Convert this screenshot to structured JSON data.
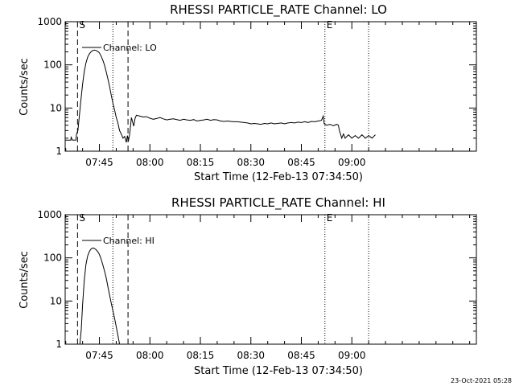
{
  "footer": {
    "timestamp": "23-Oct-2021 05:28"
  },
  "chart_data": [
    {
      "type": "line",
      "title": "RHESSI PARTICLE_RATE Channel: LO",
      "xlabel": "Start Time (12-Feb-13 07:34:50)",
      "ylabel": "Counts/sec",
      "yscale": "log",
      "ylim": [
        1,
        1000
      ],
      "xlim_minutes_of_day": [
        454.83,
        577
      ],
      "xticks": [
        {
          "t": 465,
          "label": "07:45"
        },
        {
          "t": 480,
          "label": "08:00"
        },
        {
          "t": 495,
          "label": "08:15"
        },
        {
          "t": 510,
          "label": "08:30"
        },
        {
          "t": 525,
          "label": "08:45"
        },
        {
          "t": 540,
          "label": "09:00"
        }
      ],
      "yticks": [
        {
          "v": 1,
          "label": "1"
        },
        {
          "v": 10,
          "label": "10"
        },
        {
          "v": 100,
          "label": "100"
        },
        {
          "v": 1000,
          "label": "1000"
        }
      ],
      "legend": {
        "label": "Channel: LO",
        "position": "top-left"
      },
      "event_markers": [
        {
          "time": "07:38:30",
          "t": 458.5,
          "style": "dashed",
          "label": "S"
        },
        {
          "time": "07:53:30",
          "t": 473.5,
          "style": "dashed",
          "label": ""
        },
        {
          "time": "07:49:00",
          "t": 469.0,
          "style": "dotted",
          "label": ""
        },
        {
          "time": "09:05:00",
          "t": 545.0,
          "style": "dotted",
          "label": ""
        },
        {
          "time": "08:52:00",
          "t": 532.0,
          "style": "dotted",
          "label": "E"
        }
      ],
      "series": [
        {
          "name": "Channel: LO",
          "points": [
            [
              454.9,
              1.8
            ],
            [
              456.5,
              1.8
            ],
            [
              456.6,
              2.1
            ],
            [
              457.0,
              1.8
            ],
            [
              457.5,
              1.8
            ],
            [
              458.0,
              1.8
            ],
            [
              458.2,
              2.5
            ],
            [
              458.6,
              3
            ],
            [
              459.0,
              6
            ],
            [
              459.5,
              15
            ],
            [
              460.0,
              35
            ],
            [
              460.5,
              70
            ],
            [
              461.0,
              110
            ],
            [
              461.5,
              150
            ],
            [
              462.0,
              180
            ],
            [
              462.5,
              200
            ],
            [
              463.0,
              215
            ],
            [
              463.5,
              220
            ],
            [
              464.0,
              215
            ],
            [
              464.5,
              205
            ],
            [
              465.0,
              190
            ],
            [
              465.5,
              160
            ],
            [
              466.0,
              130
            ],
            [
              466.5,
              100
            ],
            [
              467.0,
              70
            ],
            [
              467.5,
              48
            ],
            [
              468.0,
              32
            ],
            [
              468.5,
              20
            ],
            [
              469.0,
              13
            ],
            [
              469.5,
              9
            ],
            [
              470.0,
              6
            ],
            [
              470.5,
              4.5
            ],
            [
              471.0,
              3
            ],
            [
              471.5,
              2.5
            ],
            [
              472.0,
              2
            ],
            [
              472.5,
              2.2
            ],
            [
              473.0,
              1.6
            ],
            [
              473.3,
              2.3
            ],
            [
              473.6,
              1.7
            ],
            [
              474.0,
              2.5
            ],
            [
              474.2,
              3.5
            ],
            [
              474.5,
              6
            ],
            [
              474.8,
              5
            ],
            [
              475.2,
              3.8
            ],
            [
              475.6,
              5.8
            ],
            [
              476.0,
              6.8
            ],
            [
              477.0,
              6.5
            ],
            [
              478.0,
              6.2
            ],
            [
              479.0,
              6.3
            ],
            [
              480.0,
              5.8
            ],
            [
              481.0,
              5.5
            ],
            [
              482.0,
              5.7
            ],
            [
              483.0,
              6
            ],
            [
              484.0,
              5.6
            ],
            [
              485.0,
              5.3
            ],
            [
              486.0,
              5.5
            ],
            [
              487.0,
              5.6
            ],
            [
              488.0,
              5.4
            ],
            [
              489.0,
              5.2
            ],
            [
              490.0,
              5.5
            ],
            [
              491.0,
              5.3
            ],
            [
              492.0,
              5.2
            ],
            [
              493.0,
              5.4
            ],
            [
              494.0,
              5.0
            ],
            [
              495.0,
              5.2
            ],
            [
              496.0,
              5.3
            ],
            [
              497.0,
              5.5
            ],
            [
              498.0,
              5.2
            ],
            [
              499.0,
              5.4
            ],
            [
              500.0,
              5.3
            ],
            [
              501.0,
              5.0
            ],
            [
              502.0,
              4.9
            ],
            [
              503.0,
              5.0
            ],
            [
              504.0,
              4.9
            ],
            [
              505.0,
              4.8
            ],
            [
              506.0,
              4.8
            ],
            [
              507.0,
              4.7
            ],
            [
              508.0,
              4.6
            ],
            [
              509.0,
              4.5
            ],
            [
              510.0,
              4.3
            ],
            [
              511.0,
              4.4
            ],
            [
              512.0,
              4.3
            ],
            [
              513.0,
              4.2
            ],
            [
              514.0,
              4.4
            ],
            [
              515.0,
              4.3
            ],
            [
              516.0,
              4.5
            ],
            [
              517.0,
              4.3
            ],
            [
              518.0,
              4.4
            ],
            [
              519.0,
              4.5
            ],
            [
              520.0,
              4.3
            ],
            [
              521.0,
              4.5
            ],
            [
              522.0,
              4.6
            ],
            [
              523.0,
              4.5
            ],
            [
              524.0,
              4.7
            ],
            [
              525.0,
              4.6
            ],
            [
              526.0,
              4.8
            ],
            [
              527.0,
              4.6
            ],
            [
              528.0,
              4.9
            ],
            [
              529.0,
              4.8
            ],
            [
              530.0,
              5.0
            ],
            [
              531.0,
              5.2
            ],
            [
              531.5,
              6.5
            ],
            [
              531.8,
              4.3
            ],
            [
              532.5,
              4.0
            ],
            [
              533.5,
              4.2
            ],
            [
              534.5,
              3.9
            ],
            [
              535.5,
              4.2
            ],
            [
              536.0,
              4.0
            ],
            [
              536.3,
              3.0
            ],
            [
              537.0,
              2.0
            ],
            [
              537.5,
              2.5
            ],
            [
              538.0,
              2.0
            ],
            [
              539.0,
              2.4
            ],
            [
              540.0,
              2.0
            ],
            [
              541.0,
              2.3
            ],
            [
              542.0,
              2.0
            ],
            [
              543.0,
              2.4
            ],
            [
              544.0,
              2.0
            ],
            [
              545.0,
              2.3
            ],
            [
              546.0,
              2.0
            ],
            [
              547.0,
              2.4
            ]
          ]
        }
      ]
    },
    {
      "type": "line",
      "title": "RHESSI PARTICLE_RATE Channel: HI",
      "xlabel": "Start Time (12-Feb-13 07:34:50)",
      "ylabel": "Counts/sec",
      "yscale": "log",
      "ylim": [
        1,
        1000
      ],
      "xlim_minutes_of_day": [
        454.83,
        577
      ],
      "xticks": [
        {
          "t": 465,
          "label": "07:45"
        },
        {
          "t": 480,
          "label": "08:00"
        },
        {
          "t": 495,
          "label": "08:15"
        },
        {
          "t": 510,
          "label": "08:30"
        },
        {
          "t": 525,
          "label": "08:45"
        },
        {
          "t": 540,
          "label": "09:00"
        }
      ],
      "yticks": [
        {
          "v": 1,
          "label": "1"
        },
        {
          "v": 10,
          "label": "10"
        },
        {
          "v": 100,
          "label": "100"
        },
        {
          "v": 1000,
          "label": "1000"
        }
      ],
      "legend": {
        "label": "Channel: HI",
        "position": "top-left"
      },
      "event_markers": [
        {
          "time": "07:38:30",
          "t": 458.5,
          "style": "dashed",
          "label": "S"
        },
        {
          "time": "07:53:30",
          "t": 473.5,
          "style": "dashed",
          "label": ""
        },
        {
          "time": "07:49:00",
          "t": 469.0,
          "style": "dotted",
          "label": ""
        },
        {
          "time": "09:05:00",
          "t": 545.0,
          "style": "dotted",
          "label": ""
        },
        {
          "time": "08:52:00",
          "t": 532.0,
          "style": "dotted",
          "label": "E"
        }
      ],
      "series": [
        {
          "name": "Channel: HI",
          "points": [
            [
              459.2,
              1.0
            ],
            [
              459.6,
              2.2
            ],
            [
              460.0,
              8
            ],
            [
              460.5,
              30
            ],
            [
              461.0,
              70
            ],
            [
              461.5,
              110
            ],
            [
              462.0,
              140
            ],
            [
              462.5,
              160
            ],
            [
              463.0,
              170
            ],
            [
              463.5,
              165
            ],
            [
              464.0,
              155
            ],
            [
              464.5,
              140
            ],
            [
              465.0,
              120
            ],
            [
              465.5,
              95
            ],
            [
              466.0,
              70
            ],
            [
              466.5,
              50
            ],
            [
              467.0,
              35
            ],
            [
              467.5,
              22
            ],
            [
              468.0,
              14
            ],
            [
              468.5,
              9
            ],
            [
              469.0,
              6
            ],
            [
              469.5,
              4
            ],
            [
              470.0,
              2.5
            ],
            [
              470.5,
              1.6
            ],
            [
              471.0,
              1.0
            ]
          ]
        }
      ]
    }
  ]
}
